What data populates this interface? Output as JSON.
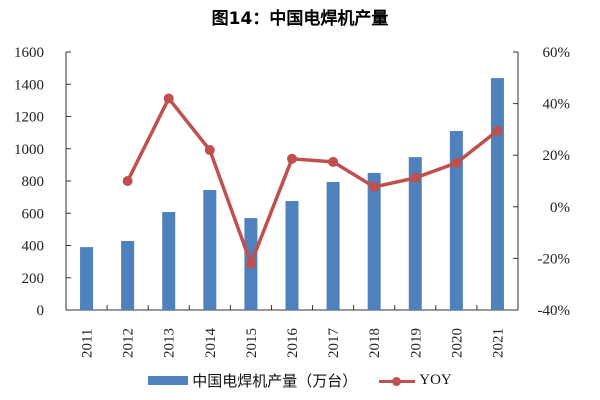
{
  "title": "图14：中国电焊机产量",
  "legend": {
    "bar_label": "中国电焊机产量（万台）",
    "line_label": "YOY"
  },
  "colors": {
    "bar": "#4f81bd",
    "line": "#c0504d"
  },
  "chart_data": {
    "type": "bar+line",
    "title": "图14：中国电焊机产量",
    "categories": [
      "2011",
      "2012",
      "2013",
      "2014",
      "2015",
      "2016",
      "2017",
      "2018",
      "2019",
      "2020",
      "2021"
    ],
    "series": [
      {
        "name": "中国电焊机产量（万台）",
        "type": "bar",
        "axis": "left",
        "values": [
          390,
          428,
          608,
          744,
          570,
          676,
          794,
          850,
          948,
          1110,
          1438
        ]
      },
      {
        "name": "YOY",
        "type": "line",
        "axis": "right",
        "unit": "%",
        "values": [
          null,
          10,
          42,
          22,
          -22,
          18.6,
          17.4,
          7.7,
          11.2,
          17,
          29.5
        ]
      }
    ],
    "left_axis": {
      "ticks": [
        0,
        200,
        400,
        600,
        800,
        1000,
        1200,
        1400,
        1600
      ],
      "ylim": [
        0,
        1600
      ]
    },
    "right_axis": {
      "ticks": [
        "-40%",
        "-20%",
        "0%",
        "20%",
        "40%",
        "60%"
      ],
      "ylim": [
        -40,
        60
      ]
    },
    "xlabel": "",
    "ylabel": "",
    "grid": false,
    "legend_position": "bottom"
  }
}
